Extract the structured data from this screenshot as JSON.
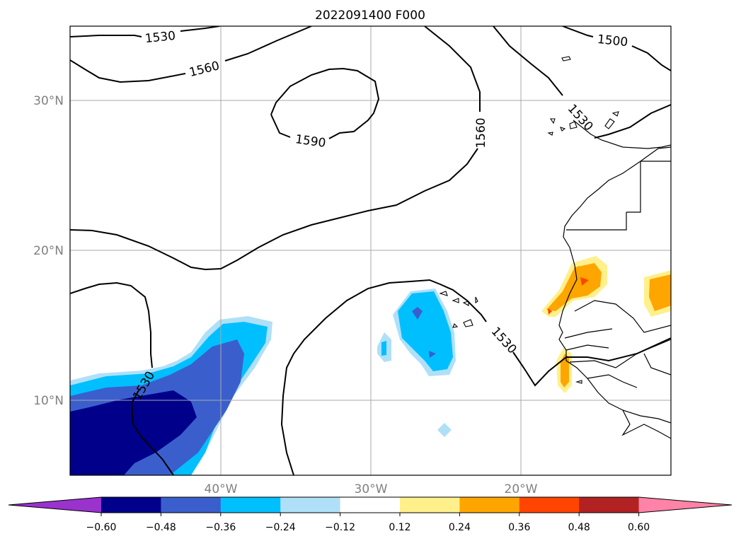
{
  "title": "2022091400 F000",
  "map": {
    "lat_ticks": [
      "30°N",
      "20°N",
      "10°N"
    ],
    "lon_ticks": [
      "40°W",
      "30°W",
      "20°W"
    ],
    "gridlines": true,
    "contour_labels": [
      "1530",
      "1560",
      "1590",
      "1560",
      "1500",
      "1530",
      "1530",
      "1530"
    ]
  },
  "colorbar": {
    "ticks": [
      "−0.60",
      "−0.48",
      "−0.36",
      "−0.24",
      "−0.12",
      "0.12",
      "0.24",
      "0.36",
      "0.48",
      "0.60"
    ],
    "colors": [
      "#9a32cd",
      "#00008b",
      "#3a5fcd",
      "#00bfff",
      "#afe0f8",
      "#ffffff",
      "#fff08c",
      "#ffa500",
      "#ff4500",
      "#b22222",
      "#ff83a8"
    ],
    "extend": "both"
  }
}
